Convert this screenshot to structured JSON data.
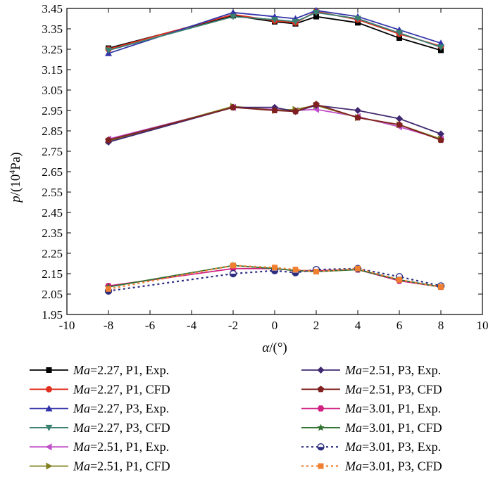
{
  "chart_data": {
    "type": "line",
    "xlabel_italic": "α",
    "xlabel_rest": "/(°)",
    "ylabel_italic": "p",
    "ylabel_rest_a": "/(10",
    "ylabel_sup": "4",
    "ylabel_rest_b": "Pa)",
    "xlim": [
      -10,
      10
    ],
    "ylim": [
      1.95,
      3.45
    ],
    "xticks": [
      -10,
      -8,
      -6,
      -4,
      -2,
      0,
      2,
      4,
      6,
      8,
      10
    ],
    "yticks": [
      1.95,
      2.05,
      2.15,
      2.25,
      2.35,
      2.45,
      2.55,
      2.65,
      2.75,
      2.85,
      2.95,
      3.05,
      3.15,
      3.25,
      3.35,
      3.45
    ],
    "x": [
      -8,
      -2,
      0,
      1,
      2,
      4,
      6,
      8
    ],
    "series": [
      {
        "ma": "Ma",
        "rest": "=2.27, P1, Exp.",
        "color": "#000000",
        "marker": "square",
        "dash": false,
        "values": [
          3.255,
          3.415,
          3.385,
          3.375,
          3.41,
          3.38,
          3.305,
          3.245
        ]
      },
      {
        "ma": "Ma",
        "rest": "=2.27, P1, CFD",
        "color": "#e03020",
        "marker": "circle",
        "dash": false,
        "values": [
          3.25,
          3.42,
          3.39,
          3.38,
          3.435,
          3.395,
          3.325,
          3.265
        ]
      },
      {
        "ma": "Ma",
        "rest": "=2.27, P3, Exp.",
        "color": "#3333aa",
        "marker": "triangle-up",
        "dash": false,
        "values": [
          3.23,
          3.43,
          3.41,
          3.4,
          3.44,
          3.41,
          3.345,
          3.28
        ]
      },
      {
        "ma": "Ma",
        "rest": "=2.27, P3, CFD",
        "color": "#3a8070",
        "marker": "triangle-down",
        "dash": false,
        "values": [
          3.245,
          3.41,
          3.395,
          3.385,
          3.43,
          3.4,
          3.33,
          3.26
        ]
      },
      {
        "ma": "Ma",
        "rest": "=2.51, P1, Exp.",
        "color": "#c050c8",
        "marker": "triangle-left",
        "dash": false,
        "values": [
          2.81,
          2.965,
          2.955,
          2.95,
          2.955,
          2.92,
          2.87,
          2.81
        ]
      },
      {
        "ma": "Ma",
        "rest": "=2.51, P1, CFD",
        "color": "#808020",
        "marker": "triangle-right",
        "dash": false,
        "values": [
          2.8,
          2.97,
          2.95,
          2.955,
          2.975,
          2.915,
          2.88,
          2.81
        ]
      },
      {
        "ma": "Ma",
        "rest": "=2.51, P3, Exp.",
        "color": "#402870",
        "marker": "diamond",
        "dash": false,
        "values": [
          2.795,
          2.965,
          2.965,
          2.945,
          2.975,
          2.95,
          2.91,
          2.835
        ]
      },
      {
        "ma": "Ma",
        "rest": "=2.51, P3, CFD",
        "color": "#802020",
        "marker": "pentagon",
        "dash": false,
        "values": [
          2.805,
          2.965,
          2.95,
          2.945,
          2.98,
          2.915,
          2.88,
          2.805
        ]
      },
      {
        "ma": "Ma",
        "rest": "=3.01, P1, Exp.",
        "color": "#d02080",
        "marker": "hexagon",
        "dash": false,
        "values": [
          2.09,
          2.175,
          2.175,
          2.165,
          2.165,
          2.17,
          2.115,
          2.085
        ]
      },
      {
        "ma": "Ma",
        "rest": "=3.01, P1, CFD",
        "color": "#307030",
        "marker": "star",
        "dash": false,
        "values": [
          2.085,
          2.19,
          2.175,
          2.165,
          2.16,
          2.17,
          2.12,
          2.085
        ]
      },
      {
        "ma": "Ma",
        "rest": "=3.01, P3, Exp.",
        "color": "#2c2c80",
        "marker": "half-circle",
        "dash": true,
        "values": [
          2.065,
          2.15,
          2.165,
          2.155,
          2.17,
          2.175,
          2.135,
          2.09
        ]
      },
      {
        "ma": "Ma",
        "rest": "=3.01, P3, CFD",
        "color": "#f08030",
        "marker": "square",
        "dash": true,
        "values": [
          2.075,
          2.19,
          2.18,
          2.17,
          2.16,
          2.175,
          2.12,
          2.085
        ]
      }
    ]
  }
}
